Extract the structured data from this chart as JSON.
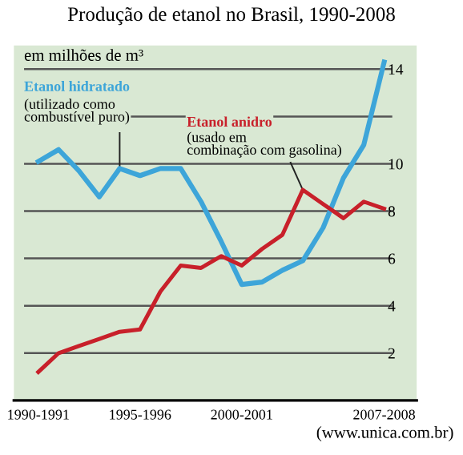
{
  "chart_data": {
    "type": "line",
    "title": "Produção de etanol no Brasil, 1990-2008",
    "ylabel": "em milhões de m³",
    "categories": [
      "1990-1991",
      null,
      null,
      null,
      null,
      "1995-1996",
      null,
      null,
      null,
      null,
      "2000-2001",
      null,
      null,
      null,
      null,
      null,
      null,
      "2007-2008"
    ],
    "series": [
      {
        "name": "Etanol hidratado",
        "color": "#3da5d9",
        "values": [
          10.1,
          10.6,
          9.7,
          8.6,
          9.8,
          9.5,
          9.8,
          9.8,
          8.4,
          6.7,
          4.9,
          5.0,
          5.5,
          5.9,
          7.3,
          9.4,
          10.8,
          14.3
        ]
      },
      {
        "name": "Etanol anidro",
        "color": "#c8202a",
        "values": [
          1.2,
          2.0,
          2.3,
          2.6,
          2.9,
          3.0,
          4.6,
          5.7,
          5.6,
          6.1,
          5.7,
          6.4,
          7.0,
          8.9,
          8.3,
          7.7,
          8.4,
          8.1
        ]
      }
    ],
    "annotations": [
      "(utilizado como combustível puro)",
      "(usado em combinação com gasolina)",
      "(www.unica.com.br)"
    ],
    "ylim": [
      0,
      15
    ],
    "yticks": [
      2,
      4,
      6,
      8,
      10,
      {
        "value": 12,
        "label": null
      },
      14
    ],
    "grid": "y",
    "legend": false,
    "marker": "none",
    "line_style": "solid"
  }
}
